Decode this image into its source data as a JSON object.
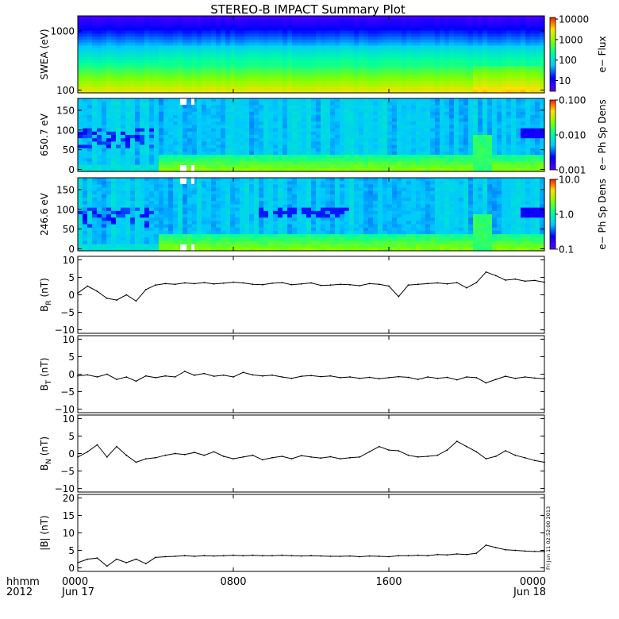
{
  "title": "STEREO-B IMPACT Summary Plot",
  "footer": {
    "left_top": "hhmm",
    "left_bottom": "2012"
  },
  "stamp": "Fri Jun 11 02:52:00 2013",
  "chart_data": [
    {
      "type": "heatmap",
      "name": "swea",
      "ylabel": "SWEA (eV)",
      "yscale": "log",
      "ylim": [
        90,
        1800
      ],
      "yticks": [
        {
          "v": 1000,
          "label": "1000"
        },
        {
          "v": 100,
          "label": "100"
        }
      ],
      "colorbar": {
        "label": "e− Flux",
        "scale": "log",
        "range": [
          3,
          12000
        ],
        "ticks": [
          {
            "v": 10000,
            "label": "10000"
          },
          {
            "v": 1000,
            "label": "1000"
          },
          {
            "v": 100,
            "label": "100"
          },
          {
            "v": 10,
            "label": "10"
          }
        ]
      }
    },
    {
      "type": "heatmap",
      "name": "pad650",
      "ylabel": "650.7 eV",
      "ylim": [
        -5,
        180
      ],
      "yticks": [
        {
          "v": 150,
          "label": "150"
        },
        {
          "v": 100,
          "label": "100"
        },
        {
          "v": 50,
          "label": "50"
        },
        {
          "v": 0,
          "label": "0"
        }
      ],
      "colorbar": {
        "label": "e− Ph Sp Dens",
        "scale": "log",
        "range": [
          0.001,
          0.1
        ],
        "ticks": [
          {
            "v": 0.1,
            "label": "0.100"
          },
          {
            "v": 0.01,
            "label": "0.010"
          },
          {
            "v": 0.001,
            "label": "0.001"
          }
        ]
      }
    },
    {
      "type": "heatmap",
      "name": "pad246",
      "ylabel": "246.6 eV",
      "ylim": [
        -5,
        180
      ],
      "yticks": [
        {
          "v": 150,
          "label": "150"
        },
        {
          "v": 100,
          "label": "100"
        },
        {
          "v": 50,
          "label": "50"
        },
        {
          "v": 0,
          "label": "0"
        }
      ],
      "colorbar": {
        "label": "e− Ph Sp Dens",
        "scale": "log",
        "range": [
          0.1,
          10
        ],
        "ticks": [
          {
            "v": 10,
            "label": "10.0"
          },
          {
            "v": 1,
            "label": "1.0"
          },
          {
            "v": 0.1,
            "label": "0.1"
          }
        ]
      }
    },
    {
      "type": "line",
      "name": "br",
      "ylabel": "B",
      "ylabel_sub": "R",
      "ylabel_unit": " (nT)",
      "ylim": [
        -11,
        11
      ],
      "yticks": [
        {
          "v": 10,
          "label": "10"
        },
        {
          "v": 5,
          "label": "5"
        },
        {
          "v": 0,
          "label": "0"
        },
        {
          "v": -5,
          "label": "−5"
        },
        {
          "v": -10,
          "label": "−10"
        }
      ],
      "x": [
        0,
        0.5,
        1,
        1.5,
        2,
        2.5,
        3,
        3.5,
        4,
        4.5,
        5,
        5.5,
        6,
        6.5,
        7,
        7.5,
        8,
        8.5,
        9,
        9.5,
        10,
        10.5,
        11,
        11.5,
        12,
        12.5,
        13,
        13.5,
        14,
        14.5,
        15,
        15.5,
        16,
        16.5,
        17,
        17.5,
        18,
        18.5,
        19,
        19.5,
        20,
        20.5,
        21,
        21.5,
        22,
        22.5,
        23,
        23.5,
        24
      ],
      "y": [
        0.5,
        2.5,
        1.0,
        -1.0,
        -1.5,
        0.0,
        -1.8,
        1.5,
        2.8,
        3.2,
        3.0,
        3.4,
        3.2,
        3.5,
        3.1,
        3.3,
        3.6,
        3.4,
        3.0,
        2.9,
        3.3,
        3.5,
        2.9,
        3.1,
        3.4,
        2.7,
        2.8,
        3.0,
        2.9,
        2.6,
        3.2,
        3.0,
        2.5,
        -0.5,
        2.8,
        3.0,
        3.2,
        3.4,
        3.1,
        3.5,
        2.0,
        3.5,
        6.5,
        5.5,
        4.2,
        4.5,
        3.9,
        4.1,
        3.6
      ]
    },
    {
      "type": "line",
      "name": "bt",
      "ylabel": "B",
      "ylabel_sub": "T",
      "ylabel_unit": " (nT)",
      "ylim": [
        -11,
        11
      ],
      "yticks": [
        {
          "v": 10,
          "label": "10"
        },
        {
          "v": 5,
          "label": "5"
        },
        {
          "v": 0,
          "label": "0"
        },
        {
          "v": -5,
          "label": "−5"
        },
        {
          "v": -10,
          "label": "−10"
        }
      ],
      "x": [
        0,
        0.5,
        1,
        1.5,
        2,
        2.5,
        3,
        3.5,
        4,
        4.5,
        5,
        5.5,
        6,
        6.5,
        7,
        7.5,
        8,
        8.5,
        9,
        9.5,
        10,
        10.5,
        11,
        11.5,
        12,
        12.5,
        13,
        13.5,
        14,
        14.5,
        15,
        15.5,
        16,
        16.5,
        17,
        17.5,
        18,
        18.5,
        19,
        19.5,
        20,
        20.5,
        21,
        21.5,
        22,
        22.5,
        23,
        23.5,
        24
      ],
      "y": [
        -0.5,
        -0.2,
        -0.8,
        0.0,
        -1.5,
        -0.8,
        -2.0,
        -0.5,
        -1.0,
        -0.5,
        -0.8,
        0.8,
        -0.3,
        0.2,
        -0.6,
        -0.3,
        -0.8,
        0.5,
        -0.2,
        -0.5,
        -0.3,
        -0.8,
        -1.2,
        -0.6,
        -0.4,
        -0.7,
        -0.5,
        -1.0,
        -0.8,
        -1.2,
        -0.9,
        -1.3,
        -1.0,
        -0.7,
        -0.9,
        -1.5,
        -0.8,
        -1.2,
        -0.9,
        -1.6,
        -0.8,
        -1.0,
        -2.5,
        -1.5,
        -0.6,
        -1.2,
        -0.8,
        -1.1,
        -1.3
      ]
    },
    {
      "type": "line",
      "name": "bn",
      "ylabel": "B",
      "ylabel_sub": "N",
      "ylabel_unit": " (nT)",
      "ylim": [
        -11,
        11
      ],
      "yticks": [
        {
          "v": 10,
          "label": "10"
        },
        {
          "v": 5,
          "label": "5"
        },
        {
          "v": 0,
          "label": "0"
        },
        {
          "v": -5,
          "label": "−5"
        },
        {
          "v": -10,
          "label": "−10"
        }
      ],
      "x": [
        0,
        0.5,
        1,
        1.5,
        2,
        2.5,
        3,
        3.5,
        4,
        4.5,
        5,
        5.5,
        6,
        6.5,
        7,
        7.5,
        8,
        8.5,
        9,
        9.5,
        10,
        10.5,
        11,
        11.5,
        12,
        12.5,
        13,
        13.5,
        14,
        14.5,
        15,
        15.5,
        16,
        16.5,
        17,
        17.5,
        18,
        18.5,
        19,
        19.5,
        20,
        20.5,
        21,
        21.5,
        22,
        22.5,
        23,
        23.5,
        24
      ],
      "y": [
        -1.0,
        0.5,
        2.5,
        -1.0,
        2.0,
        -0.5,
        -2.5,
        -1.5,
        -1.2,
        -0.5,
        0.0,
        -0.3,
        0.3,
        -0.5,
        0.5,
        -0.8,
        -1.5,
        -1.0,
        -0.5,
        -1.8,
        -1.2,
        -0.8,
        -1.5,
        -0.6,
        -1.0,
        -1.3,
        -0.9,
        -1.5,
        -1.2,
        -1.0,
        0.5,
        2.0,
        1.0,
        0.8,
        -0.5,
        -1.0,
        -0.8,
        -0.5,
        1.0,
        3.5,
        2.0,
        0.5,
        -1.5,
        -0.8,
        0.8,
        -0.5,
        -1.2,
        -2.0,
        -2.5
      ]
    },
    {
      "type": "line",
      "name": "bmag",
      "ylabel": "|B| (nT)",
      "ylim": [
        -1,
        21
      ],
      "yticks": [
        {
          "v": 20,
          "label": "20"
        },
        {
          "v": 15,
          "label": "15"
        },
        {
          "v": 10,
          "label": "10"
        },
        {
          "v": 5,
          "label": "5"
        },
        {
          "v": 0,
          "label": "0"
        }
      ],
      "x": [
        0,
        0.5,
        1,
        1.5,
        2,
        2.5,
        3,
        3.5,
        4,
        4.5,
        5,
        5.5,
        6,
        6.5,
        7,
        7.5,
        8,
        8.5,
        9,
        9.5,
        10,
        10.5,
        11,
        11.5,
        12,
        12.5,
        13,
        13.5,
        14,
        14.5,
        15,
        15.5,
        16,
        16.5,
        17,
        17.5,
        18,
        18.5,
        19,
        19.5,
        20,
        20.5,
        21,
        21.5,
        22,
        22.5,
        23,
        23.5,
        24
      ],
      "y": [
        1.5,
        2.5,
        2.8,
        0.5,
        2.5,
        1.5,
        2.5,
        1.2,
        3.0,
        3.2,
        3.3,
        3.5,
        3.3,
        3.5,
        3.4,
        3.5,
        3.6,
        3.5,
        3.6,
        3.5,
        3.5,
        3.6,
        3.5,
        3.4,
        3.5,
        3.4,
        3.3,
        3.3,
        3.4,
        3.2,
        3.4,
        3.3,
        3.2,
        3.5,
        3.5,
        3.6,
        3.5,
        3.8,
        3.7,
        4.0,
        3.8,
        4.2,
        6.5,
        5.8,
        5.2,
        5.0,
        4.8,
        4.7,
        4.7
      ]
    }
  ],
  "xaxis": {
    "range": [
      0,
      24
    ],
    "ticks": [
      {
        "v": 0,
        "top": "0000",
        "bottom": "Jun 17"
      },
      {
        "v": 8,
        "top": "0800",
        "bottom": ""
      },
      {
        "v": 16,
        "top": "1600",
        "bottom": ""
      },
      {
        "v": 24,
        "top": "0000",
        "bottom": "Jun 18"
      }
    ]
  }
}
